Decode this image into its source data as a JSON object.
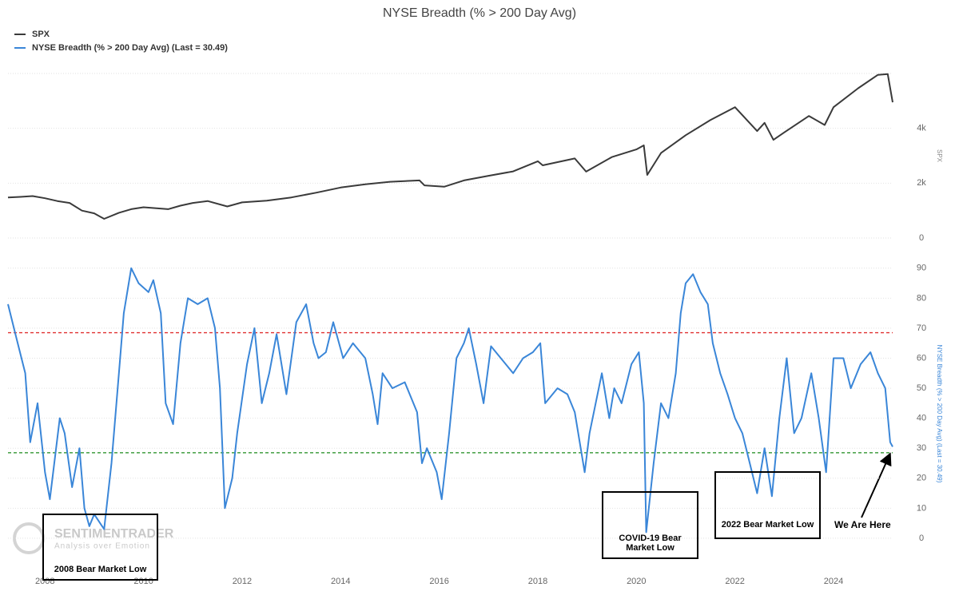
{
  "chart_data": [
    {
      "type": "line",
      "title": "NYSE Breadth (% > 200 Day Avg)",
      "ylabel": "SPX",
      "xlim": [
        2007.25,
        2025.2
      ],
      "ylim": [
        0,
        6000
      ],
      "yticks": [
        0,
        {
          "value": 2000,
          "label": "2k"
        },
        {
          "value": 4000,
          "label": "4k"
        },
        {
          "value": 6000,
          "label": ""
        }
      ],
      "grid": true,
      "series": [
        {
          "name": "SPX",
          "color": "#3a3a3a",
          "x": [
            2007.25,
            2007.5,
            2007.75,
            2008,
            2008.25,
            2008.5,
            2008.75,
            2009,
            2009.2,
            2009.5,
            2009.75,
            2010,
            2010.5,
            2010.75,
            2011,
            2011.3,
            2011.7,
            2012,
            2012.5,
            2013,
            2013.5,
            2014,
            2014.5,
            2015,
            2015.6,
            2015.7,
            2016.1,
            2016.5,
            2017,
            2017.5,
            2018,
            2018.1,
            2018.75,
            2018.98,
            2019.5,
            2020,
            2020.15,
            2020.22,
            2020.5,
            2021,
            2021.5,
            2022,
            2022.45,
            2022.6,
            2022.78,
            2023,
            2023.5,
            2023.82,
            2024,
            2024.5,
            2024.9,
            2025.1,
            2025.2
          ],
          "values": [
            1480,
            1500,
            1530,
            1450,
            1350,
            1280,
            1000,
            900,
            700,
            920,
            1050,
            1120,
            1050,
            1180,
            1280,
            1350,
            1150,
            1300,
            1360,
            1480,
            1650,
            1840,
            1960,
            2050,
            2100,
            1920,
            1870,
            2100,
            2270,
            2430,
            2800,
            2650,
            2900,
            2420,
            2950,
            3230,
            3380,
            2300,
            3100,
            3750,
            4300,
            4770,
            3900,
            4200,
            3580,
            3850,
            4450,
            4120,
            4770,
            5460,
            5950,
            5980,
            4950
          ]
        }
      ]
    },
    {
      "type": "line",
      "ylabel": "NYSE Breadth (% > 200 Day Avg) (Last = 30.49)",
      "xlim": [
        2007.25,
        2025.2
      ],
      "ylim": [
        -12,
        95
      ],
      "xticks": [
        2008,
        2010,
        2012,
        2014,
        2016,
        2018,
        2020,
        2022,
        2024
      ],
      "yticks": [
        0,
        10,
        20,
        30,
        40,
        50,
        60,
        70,
        80,
        90
      ],
      "grid": true,
      "hlines": [
        {
          "value": 68.5,
          "color": "#e03030"
        },
        {
          "value": 28.5,
          "color": "#1a8a1a"
        }
      ],
      "series": [
        {
          "name": "NYSE Breadth (% > 200 Day Avg) (Last = 30.49)",
          "color": "#3a86d8",
          "x": [
            2007.25,
            2007.4,
            2007.6,
            2007.7,
            2007.85,
            2008,
            2008.1,
            2008.3,
            2008.4,
            2008.55,
            2008.7,
            2008.8,
            2008.9,
            2009.0,
            2009.2,
            2009.35,
            2009.5,
            2009.6,
            2009.75,
            2009.9,
            2010.1,
            2010.2,
            2010.35,
            2010.45,
            2010.6,
            2010.75,
            2010.9,
            2011.1,
            2011.3,
            2011.45,
            2011.55,
            2011.65,
            2011.8,
            2011.9,
            2012.1,
            2012.25,
            2012.4,
            2012.55,
            2012.7,
            2012.9,
            2013.1,
            2013.3,
            2013.45,
            2013.55,
            2013.7,
            2013.85,
            2014.05,
            2014.25,
            2014.5,
            2014.65,
            2014.75,
            2014.85,
            2015.05,
            2015.3,
            2015.55,
            2015.65,
            2015.75,
            2015.95,
            2016.05,
            2016.2,
            2016.35,
            2016.5,
            2016.6,
            2016.75,
            2016.9,
            2017.05,
            2017.25,
            2017.5,
            2017.7,
            2017.9,
            2018.05,
            2018.15,
            2018.4,
            2018.6,
            2018.75,
            2018.95,
            2019.05,
            2019.3,
            2019.45,
            2019.55,
            2019.7,
            2019.9,
            2020.05,
            2020.15,
            2020.2,
            2020.35,
            2020.5,
            2020.65,
            2020.8,
            2020.9,
            2021.0,
            2021.15,
            2021.3,
            2021.45,
            2021.55,
            2021.7,
            2021.85,
            2022.0,
            2022.15,
            2022.3,
            2022.45,
            2022.6,
            2022.75,
            2022.9,
            2023.05,
            2023.2,
            2023.35,
            2023.55,
            2023.7,
            2023.85,
            2024.0,
            2024.2,
            2024.35,
            2024.55,
            2024.75,
            2024.9,
            2025.05,
            2025.15,
            2025.2
          ],
          "values": [
            78,
            68,
            55,
            32,
            45,
            22,
            13,
            40,
            35,
            17,
            30,
            10,
            4,
            8,
            3,
            25,
            55,
            75,
            90,
            85,
            82,
            86,
            75,
            45,
            38,
            65,
            80,
            78,
            80,
            70,
            50,
            10,
            20,
            35,
            58,
            70,
            45,
            55,
            68,
            48,
            72,
            78,
            65,
            60,
            62,
            72,
            60,
            65,
            60,
            48,
            38,
            55,
            50,
            52,
            42,
            25,
            30,
            22,
            13,
            35,
            60,
            65,
            70,
            58,
            45,
            64,
            60,
            55,
            60,
            62,
            65,
            45,
            50,
            48,
            42,
            22,
            35,
            55,
            40,
            50,
            45,
            58,
            62,
            45,
            2,
            25,
            45,
            40,
            55,
            75,
            85,
            88,
            82,
            78,
            65,
            55,
            48,
            40,
            35,
            25,
            15,
            30,
            14,
            40,
            60,
            35,
            40,
            55,
            40,
            22,
            60,
            60,
            50,
            58,
            62,
            55,
            50,
            32,
            30.49
          ]
        }
      ]
    }
  ],
  "annotations": [
    "2008 Bear Market Low",
    "COVID-19 Bear Market Low",
    "2022 Bear Market Low",
    "We Are Here"
  ],
  "watermark": {
    "brand": "SENTIMENTRADER",
    "tagline": "Analysis over Emotion"
  }
}
